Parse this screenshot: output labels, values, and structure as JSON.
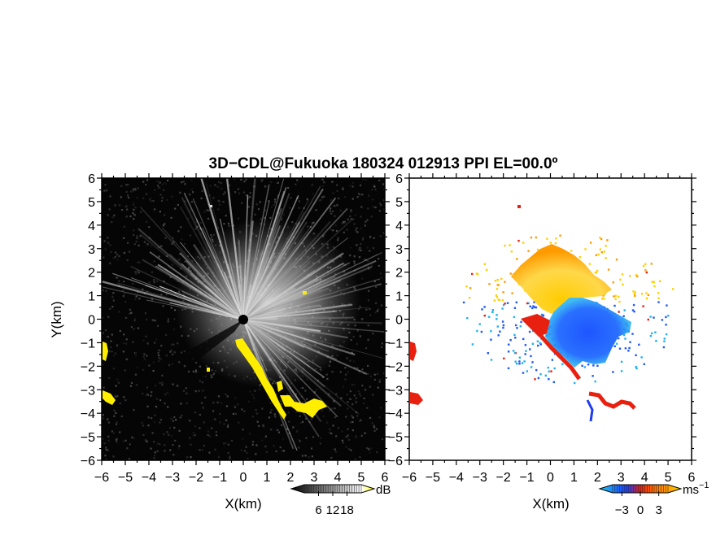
{
  "title": "3D−CDL@Fukuoka 180324 012913 PPI EL=00.0º",
  "chart_data": [
    {
      "type": "heatmap",
      "panel": "left",
      "quantity": "reflectivity",
      "xlabel": "X(km)",
      "ylabel": "Y(km)",
      "xlim": [
        -6,
        6
      ],
      "ylim": [
        -6,
        6
      ],
      "xticks": [
        "−6",
        "−5",
        "−4",
        "−3",
        "−2",
        "−1",
        "0",
        "1",
        "2",
        "3",
        "4",
        "5",
        "6"
      ],
      "yticks": [
        "6",
        "5",
        "4",
        "3",
        "2",
        "1",
        "0",
        "−1",
        "−2",
        "−3",
        "−4",
        "−5",
        "−6"
      ],
      "colorbar": {
        "unit": "dB",
        "ticks": [
          "6",
          "12",
          "18"
        ],
        "range": [
          0,
          24
        ],
        "colors": [
          "#000000",
          "#ffffff",
          "#ffff00"
        ]
      },
      "highlight_color": "#ffee00",
      "background": "#000000"
    },
    {
      "type": "heatmap",
      "panel": "right",
      "quantity": "doppler velocity",
      "xlabel": "X(km)",
      "xlim": [
        -6,
        6
      ],
      "ylim": [
        -6,
        6
      ],
      "xticks": [
        "−6",
        "−5",
        "−4",
        "−3",
        "−2",
        "−1",
        "0",
        "1",
        "2",
        "3",
        "4",
        "5",
        "6"
      ],
      "yticks": [
        "6",
        "5",
        "4",
        "3",
        "2",
        "1",
        "0",
        "−1",
        "−2",
        "−3",
        "−4",
        "−5",
        "−6"
      ],
      "colorbar": {
        "unit": "ms",
        "unit_exp": "−1",
        "ticks": [
          "−3",
          "0",
          "3"
        ],
        "range": [
          -4.5,
          4.5
        ],
        "colors": [
          "#1fc8f0",
          "#1e40ff",
          "#e82010",
          "#ffd000"
        ]
      },
      "background": "#ffffff"
    }
  ]
}
